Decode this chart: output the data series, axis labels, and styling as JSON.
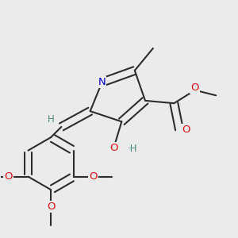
{
  "background_color": "#ebebeb",
  "atom_colors": {
    "C": "#2d2d2d",
    "N": "#0000cc",
    "O": "#dd1111",
    "H_label": "#4a8a80"
  },
  "bond_color": "#2d2d2d",
  "bond_lw": 1.5,
  "figsize": [
    3.0,
    3.0
  ],
  "dpi": 100
}
